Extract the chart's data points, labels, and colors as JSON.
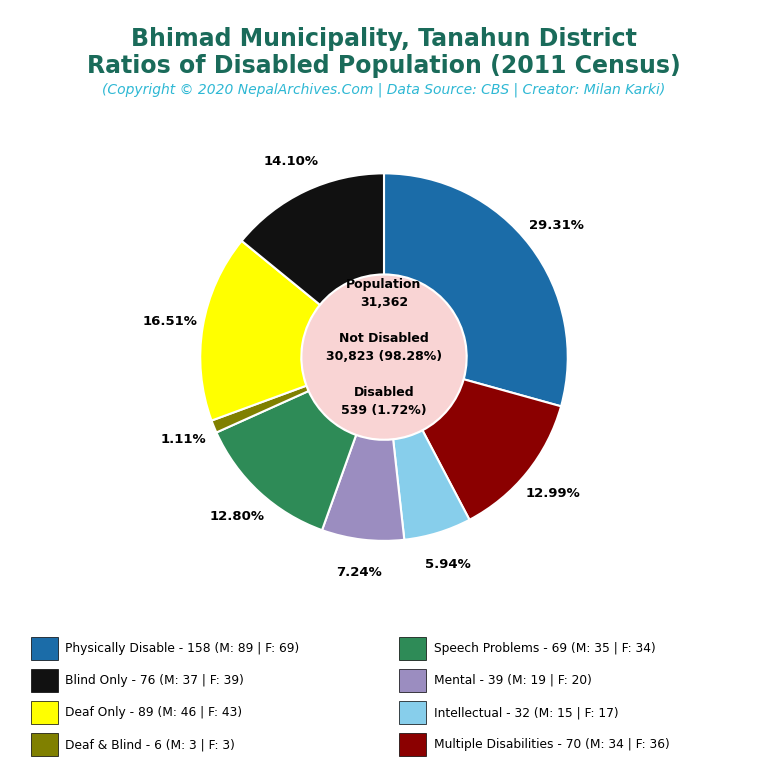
{
  "title_line1": "Bhimad Municipality, Tanahun District",
  "title_line2": "Ratios of Disabled Population (2011 Census)",
  "subtitle": "(Copyright © 2020 NepalArchives.Com | Data Source: CBS | Creator: Milan Karki)",
  "title_color": "#1a6b5a",
  "subtitle_color": "#2eb8d4",
  "center_bg": "#f9d4d4",
  "slices": [
    {
      "label": "Physically Disable - 158 (M: 89 | F: 69)",
      "value": 158,
      "color": "#1b6ca8",
      "pct": "29.31%"
    },
    {
      "label": "Multiple Disabilities - 70 (M: 34 | F: 36)",
      "value": 70,
      "color": "#8b0000",
      "pct": "12.99%"
    },
    {
      "label": "Intellectual - 32 (M: 15 | F: 17)",
      "value": 32,
      "color": "#87ceeb",
      "pct": "5.94%"
    },
    {
      "label": "Mental - 39 (M: 19 | F: 20)",
      "value": 39,
      "color": "#9b8dc0",
      "pct": "7.24%"
    },
    {
      "label": "Speech Problems - 69 (M: 35 | F: 34)",
      "value": 69,
      "color": "#2e8b57",
      "pct": "12.80%"
    },
    {
      "label": "Deaf & Blind - 6 (M: 3 | F: 3)",
      "value": 6,
      "color": "#808000",
      "pct": "1.11%"
    },
    {
      "label": "Deaf Only - 89 (M: 46 | F: 43)",
      "value": 89,
      "color": "#ffff00",
      "pct": "16.51%"
    },
    {
      "label": "Blind Only - 76 (M: 37 | F: 39)",
      "value": 76,
      "color": "#111111",
      "pct": "14.10%"
    }
  ],
  "legend_order": [
    {
      "label": "Physically Disable - 158 (M: 89 | F: 69)",
      "color": "#1b6ca8"
    },
    {
      "label": "Blind Only - 76 (M: 37 | F: 39)",
      "color": "#111111"
    },
    {
      "label": "Deaf Only - 89 (M: 46 | F: 43)",
      "color": "#ffff00"
    },
    {
      "label": "Deaf & Blind - 6 (M: 3 | F: 3)",
      "color": "#808000"
    },
    {
      "label": "Speech Problems - 69 (M: 35 | F: 34)",
      "color": "#2e8b57"
    },
    {
      "label": "Mental - 39 (M: 19 | F: 20)",
      "color": "#9b8dc0"
    },
    {
      "label": "Intellectual - 32 (M: 15 | F: 17)",
      "color": "#87ceeb"
    },
    {
      "label": "Multiple Disabilities - 70 (M: 34 | F: 36)",
      "color": "#8b0000"
    }
  ],
  "bg_color": "#ffffff"
}
